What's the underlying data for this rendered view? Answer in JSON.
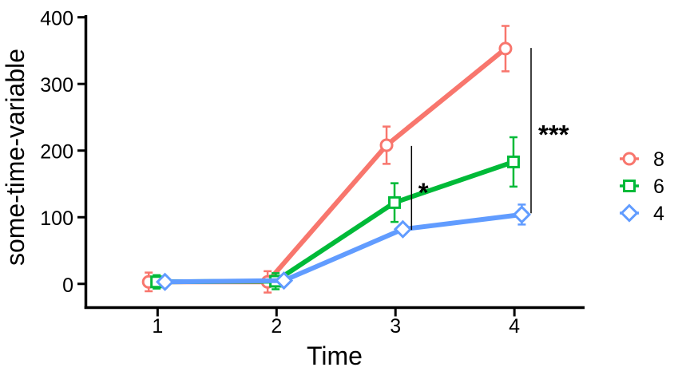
{
  "chart_data": {
    "type": "line",
    "title": "",
    "xlabel": "Time",
    "ylabel": "some-time-variable",
    "x": [
      1,
      2,
      3,
      4
    ],
    "xticks": [
      1,
      2,
      3,
      4
    ],
    "yticks": [
      0,
      100,
      200,
      300,
      400
    ],
    "xlim": [
      0.4,
      4.59
    ],
    "ylim": [
      -35,
      402
    ],
    "grid": false,
    "legend_position": "right",
    "axis_color": "#000000",
    "background": "#FFFFFF",
    "marker_fill": "#FFFFFF",
    "series": [
      {
        "name": "8",
        "color": "#F8766D",
        "marker": "circle",
        "x_offset": -0.075,
        "values": [
          3,
          3,
          208,
          353
        ],
        "errors": [
          14,
          16,
          28,
          34
        ]
      },
      {
        "name": "6",
        "color": "#00BA38",
        "marker": "square",
        "x_offset": -0.008,
        "values": [
          3,
          4,
          122,
          183
        ],
        "errors": [
          10,
          12,
          29,
          37
        ]
      },
      {
        "name": "4",
        "color": "#619CFF",
        "marker": "diamond",
        "x_offset": 0.062,
        "values": [
          3,
          5,
          82,
          104
        ],
        "errors": [
          6,
          6,
          6,
          15
        ]
      }
    ],
    "annotations": [
      {
        "label": "*",
        "line_x": 3.135,
        "y_from": 81,
        "y_to": 207,
        "text_x": 3.235,
        "text_y": 150
      },
      {
        "label": "***",
        "line_x": 4.14,
        "y_from": 106,
        "y_to": 354,
        "text_x": 4.33,
        "text_y": 237
      }
    ]
  }
}
